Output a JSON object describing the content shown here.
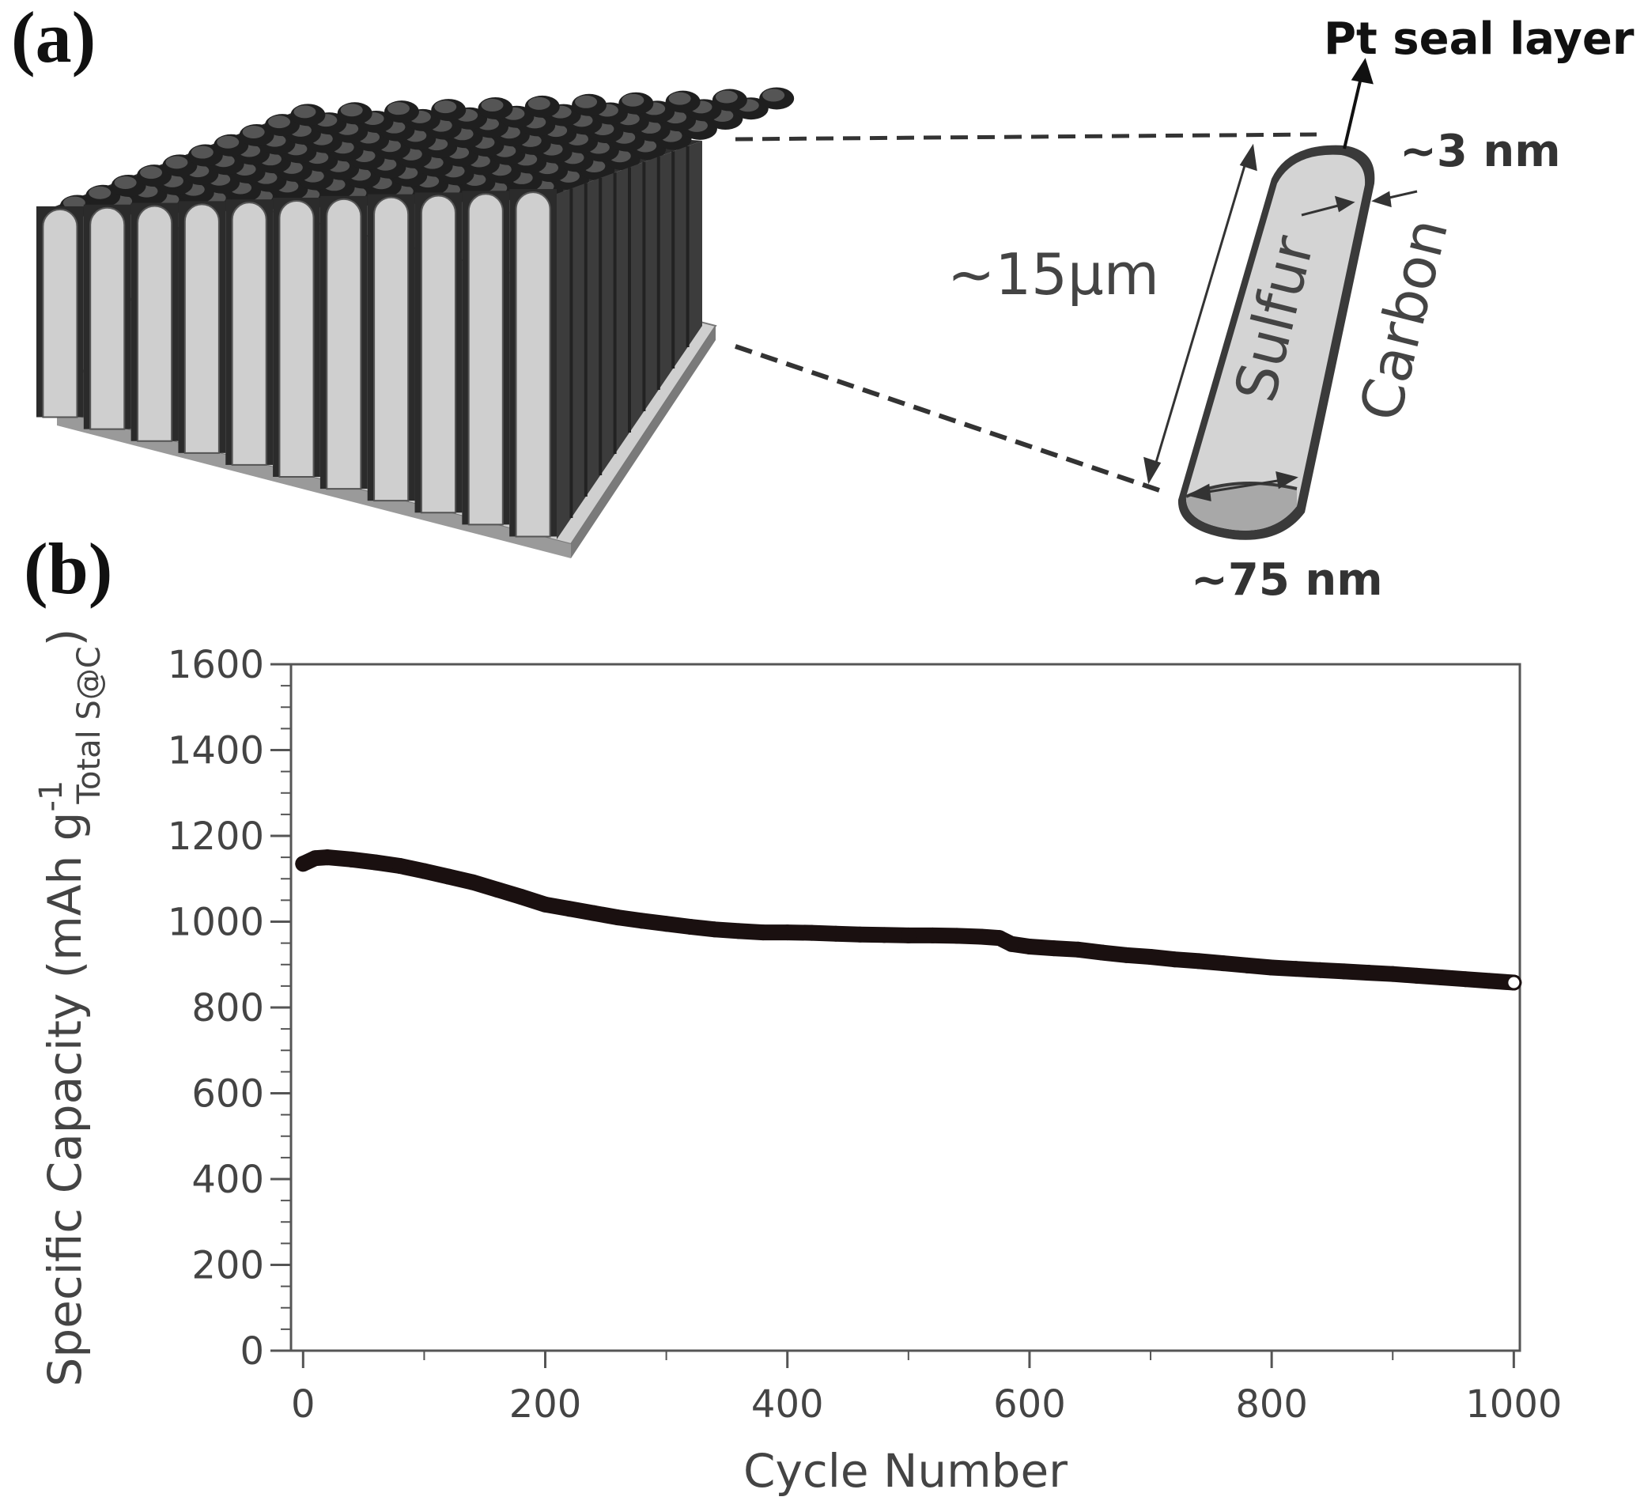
{
  "panels": {
    "a_label": "(a)",
    "b_label": "(b)"
  },
  "schematic": {
    "pt_seal_layer": "Pt seal layer",
    "thickness_3nm": "~3 nm",
    "length_15um": "~15µm",
    "sulfur": "Sulfur",
    "carbon": "Carbon",
    "diameter_75nm": "~75 nm",
    "colors": {
      "rod_face": "#cfcfcf",
      "rod_shell": "#3a3a3a",
      "base": "#bdbdbd"
    }
  },
  "chart_data": {
    "type": "scatter",
    "xlabel": "Cycle Number",
    "ylabel_main": "Specific Capacity (mAh g",
    "ylabel_sup": "-1",
    "ylabel_sub": "Total S@C",
    "ylabel_close": ")",
    "xlim": [
      -10,
      1005
    ],
    "ylim": [
      0,
      1600
    ],
    "xticks": [
      0,
      200,
      400,
      600,
      800,
      1000
    ],
    "yticks": [
      0,
      200,
      400,
      600,
      800,
      1000,
      1200,
      1400,
      1600
    ],
    "grid": false,
    "marker_color": "#1a1010",
    "series": [
      {
        "x": [
          0,
          10,
          20,
          40,
          60,
          80,
          100,
          120,
          140,
          160,
          180,
          200,
          220,
          240,
          260,
          280,
          300,
          320,
          340,
          360,
          380,
          400,
          420,
          440,
          460,
          480,
          500,
          520,
          540,
          560,
          575,
          585,
          600,
          620,
          640,
          660,
          680,
          700,
          720,
          740,
          760,
          780,
          800,
          820,
          840,
          860,
          880,
          900,
          920,
          940,
          960,
          980,
          1000
        ],
        "y": [
          1135,
          1148,
          1150,
          1145,
          1138,
          1130,
          1118,
          1105,
          1092,
          1075,
          1058,
          1040,
          1030,
          1020,
          1010,
          1002,
          995,
          988,
          982,
          978,
          975,
          975,
          974,
          972,
          970,
          969,
          968,
          968,
          967,
          965,
          962,
          948,
          942,
          938,
          935,
          928,
          922,
          918,
          912,
          908,
          903,
          898,
          893,
          890,
          887,
          884,
          881,
          878,
          874,
          870,
          866,
          862,
          858
        ]
      }
    ]
  }
}
